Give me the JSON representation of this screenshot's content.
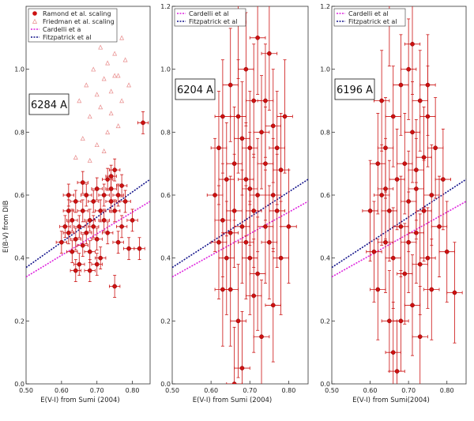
{
  "chart_data": [
    {
      "type": "scatter",
      "panel_label": "6284 A",
      "xlabel": "E(V-I) from Sumi (2004)",
      "ylabel": "E(B-V) from DIB",
      "xlim": [
        0.5,
        0.85
      ],
      "ylim": [
        0.0,
        1.2
      ],
      "x_ticks": [
        "0.50",
        "0.60",
        "0.70",
        "0.80"
      ],
      "y_ticks": [
        "0.0",
        "0.2",
        "0.4",
        "0.6",
        "0.8",
        "1.0"
      ],
      "legend_position": "top-left",
      "legend": [
        {
          "label": "Ramond et al. scaling",
          "kind": "marker-filled",
          "color": "#cc1111"
        },
        {
          "label": "Friedman et al. scaling",
          "kind": "marker-open",
          "color": "#e88a8a"
        },
        {
          "label": "Cardelli et a",
          "kind": "line",
          "color": "#dd22dd"
        },
        {
          "label": "Fitzpatrick et al",
          "kind": "line",
          "color": "#11118a"
        }
      ],
      "series": [
        {
          "name": "Ramond et al. scaling",
          "marker": "filled-circle",
          "color": "#cc1111",
          "error_x": 0.015,
          "error_y": 0.035,
          "points": [
            [
              0.6,
              0.45
            ],
            [
              0.61,
              0.5
            ],
            [
              0.62,
              0.55
            ],
            [
              0.62,
              0.48
            ],
            [
              0.63,
              0.42
            ],
            [
              0.63,
              0.52
            ],
            [
              0.64,
              0.58
            ],
            [
              0.64,
              0.46
            ],
            [
              0.65,
              0.5
            ],
            [
              0.65,
              0.38
            ],
            [
              0.66,
              0.55
            ],
            [
              0.66,
              0.44
            ],
            [
              0.67,
              0.6
            ],
            [
              0.67,
              0.48
            ],
            [
              0.68,
              0.52
            ],
            [
              0.68,
              0.42
            ],
            [
              0.69,
              0.58
            ],
            [
              0.69,
              0.5
            ],
            [
              0.7,
              0.62
            ],
            [
              0.7,
              0.46
            ],
            [
              0.71,
              0.55
            ],
            [
              0.71,
              0.4
            ],
            [
              0.72,
              0.6
            ],
            [
              0.72,
              0.52
            ],
            [
              0.73,
              0.65
            ],
            [
              0.73,
              0.48
            ],
            [
              0.74,
              0.58
            ],
            [
              0.74,
              0.62
            ],
            [
              0.75,
              0.68
            ],
            [
              0.75,
              0.55
            ],
            [
              0.76,
              0.6
            ],
            [
              0.76,
              0.45
            ],
            [
              0.77,
              0.63
            ],
            [
              0.77,
              0.5
            ],
            [
              0.78,
              0.58
            ],
            [
              0.79,
              0.43
            ],
            [
              0.8,
              0.52
            ],
            [
              0.82,
              0.43
            ],
            [
              0.75,
              0.31
            ],
            [
              0.83,
              0.83
            ],
            [
              0.7,
              0.38
            ],
            [
              0.68,
              0.36
            ],
            [
              0.64,
              0.36
            ],
            [
              0.66,
              0.64
            ],
            [
              0.74,
              0.66
            ],
            [
              0.62,
              0.6
            ]
          ]
        },
        {
          "name": "Friedman et al. scaling",
          "marker": "open-triangle",
          "color": "#e88a8a",
          "points": [
            [
              0.65,
              0.9
            ],
            [
              0.67,
              0.95
            ],
            [
              0.68,
              0.85
            ],
            [
              0.69,
              1.0
            ],
            [
              0.7,
              0.92
            ],
            [
              0.71,
              0.88
            ],
            [
              0.72,
              0.97
            ],
            [
              0.73,
              1.02
            ],
            [
              0.74,
              0.93
            ],
            [
              0.75,
              1.05
            ],
            [
              0.76,
              0.98
            ],
            [
              0.77,
              1.1
            ],
            [
              0.78,
              1.03
            ],
            [
              0.73,
              0.8
            ],
            [
              0.7,
              0.76
            ],
            [
              0.66,
              0.78
            ],
            [
              0.74,
              0.86
            ],
            [
              0.71,
              1.07
            ],
            [
              0.68,
              0.71
            ],
            [
              0.79,
              0.95
            ],
            [
              0.76,
              0.82
            ],
            [
              0.72,
              0.74
            ],
            [
              0.64,
              0.72
            ],
            [
              0.77,
              0.9
            ],
            [
              0.75,
              0.98
            ]
          ]
        }
      ],
      "lines": [
        {
          "name": "Cardelli et a",
          "color": "#dd22dd",
          "x": [
            0.5,
            0.85
          ],
          "y": [
            0.34,
            0.58
          ]
        },
        {
          "name": "Fitzpatrick et al",
          "color": "#11118a",
          "x": [
            0.5,
            0.85
          ],
          "y": [
            0.37,
            0.65
          ]
        }
      ]
    },
    {
      "type": "scatter",
      "panel_label": "6204 A",
      "xlabel": "E(V-I) from Sumi (2004)",
      "ylabel": "",
      "xlim": [
        0.5,
        0.85
      ],
      "ylim": [
        0.0,
        1.2
      ],
      "x_ticks": [
        "0.50",
        "0.60",
        "0.70",
        "0.80"
      ],
      "y_ticks": [
        "0.0",
        "0.2",
        "0.4",
        "0.6",
        "0.8",
        "1.0",
        "1.2"
      ],
      "legend_position": "top-left",
      "legend": [
        {
          "label": "Cardelli et al",
          "kind": "line",
          "color": "#dd22dd"
        },
        {
          "label": "Fitzpatrick et al",
          "kind": "line",
          "color": "#11118a"
        }
      ],
      "series": [
        {
          "name": "",
          "marker": "filled-circle",
          "color": "#cc1111",
          "error_x": 0.02,
          "error_y": 0.18,
          "points": [
            [
              0.61,
              0.6
            ],
            [
              0.62,
              0.45
            ],
            [
              0.62,
              0.75
            ],
            [
              0.63,
              0.52
            ],
            [
              0.63,
              0.85
            ],
            [
              0.64,
              0.4
            ],
            [
              0.64,
              0.65
            ],
            [
              0.65,
              0.3
            ],
            [
              0.65,
              0.95
            ],
            [
              0.66,
              0.55
            ],
            [
              0.66,
              0.7
            ],
            [
              0.67,
              0.2
            ],
            [
              0.67,
              0.85
            ],
            [
              0.68,
              0.5
            ],
            [
              0.68,
              0.05
            ],
            [
              0.69,
              0.65
            ],
            [
              0.69,
              1.0
            ],
            [
              0.7,
              0.4
            ],
            [
              0.7,
              0.75
            ],
            [
              0.71,
              0.55
            ],
            [
              0.71,
              0.9
            ],
            [
              0.72,
              0.35
            ],
            [
              0.72,
              0.6
            ],
            [
              0.73,
              0.8
            ],
            [
              0.73,
              0.15
            ],
            [
              0.74,
              0.5
            ],
            [
              0.74,
              0.7
            ],
            [
              0.75,
              0.45
            ],
            [
              0.75,
              1.05
            ],
            [
              0.76,
              0.6
            ],
            [
              0.76,
              0.25
            ],
            [
              0.77,
              0.75
            ],
            [
              0.77,
              0.55
            ],
            [
              0.78,
              0.4
            ],
            [
              0.78,
              0.68
            ],
            [
              0.79,
              0.85
            ],
            [
              0.8,
              0.5
            ],
            [
              0.67,
              1.15
            ],
            [
              0.66,
              0.0
            ],
            [
              0.72,
              1.1
            ],
            [
              0.63,
              0.3
            ],
            [
              0.7,
              0.62
            ],
            [
              0.68,
              0.78
            ],
            [
              0.74,
              0.9
            ],
            [
              0.65,
              0.48
            ],
            [
              0.71,
              0.28
            ],
            [
              0.76,
              0.82
            ],
            [
              0.69,
              0.45
            ]
          ]
        }
      ],
      "lines": [
        {
          "name": "Cardelli et al",
          "color": "#dd22dd",
          "x": [
            0.5,
            0.85
          ],
          "y": [
            0.34,
            0.58
          ]
        },
        {
          "name": "Fitzpatrick et al",
          "color": "#11118a",
          "x": [
            0.5,
            0.85
          ],
          "y": [
            0.37,
            0.65
          ]
        }
      ]
    },
    {
      "type": "scatter",
      "panel_label": "6196 A",
      "xlabel": "E(V-I) from Sumi(2004)",
      "ylabel": "",
      "xlim": [
        0.5,
        0.85
      ],
      "ylim": [
        0.0,
        1.2
      ],
      "x_ticks": [
        "0.50",
        "0.60",
        "0.70",
        "0.80"
      ],
      "y_ticks": [
        "0.0",
        "0.2",
        "0.4",
        "0.6",
        "0.8",
        "1.0",
        "1.2"
      ],
      "legend_position": "top-left",
      "legend": [
        {
          "label": "Cardelli et al",
          "kind": "line",
          "color": "#dd22dd"
        },
        {
          "label": "Fitzpatrick et al",
          "kind": "line",
          "color": "#11118a"
        }
      ],
      "series": [
        {
          "name": "",
          "marker": "filled-circle",
          "color": "#cc1111",
          "error_x": 0.02,
          "error_y": 0.16,
          "points": [
            [
              0.6,
              0.55
            ],
            [
              0.61,
              0.42
            ],
            [
              0.62,
              0.7
            ],
            [
              0.62,
              0.3
            ],
            [
              0.63,
              0.6
            ],
            [
              0.63,
              0.9
            ],
            [
              0.64,
              0.45
            ],
            [
              0.64,
              0.75
            ],
            [
              0.65,
              0.2
            ],
            [
              0.65,
              0.55
            ],
            [
              0.66,
              0.85
            ],
            [
              0.66,
              0.4
            ],
            [
              0.67,
              0.65
            ],
            [
              0.67,
              0.04
            ],
            [
              0.68,
              0.5
            ],
            [
              0.68,
              0.95
            ],
            [
              0.69,
              0.35
            ],
            [
              0.69,
              0.7
            ],
            [
              0.7,
              0.58
            ],
            [
              0.7,
              1.0
            ],
            [
              0.71,
              0.25
            ],
            [
              0.71,
              0.8
            ],
            [
              0.72,
              0.48
            ],
            [
              0.72,
              0.62
            ],
            [
              0.73,
              0.9
            ],
            [
              0.73,
              0.15
            ],
            [
              0.74,
              0.55
            ],
            [
              0.74,
              0.72
            ],
            [
              0.75,
              0.4
            ],
            [
              0.75,
              0.85
            ],
            [
              0.76,
              0.6
            ],
            [
              0.76,
              0.3
            ],
            [
              0.77,
              0.75
            ],
            [
              0.78,
              0.5
            ],
            [
              0.79,
              0.65
            ],
            [
              0.8,
              0.42
            ],
            [
              0.82,
              0.29
            ],
            [
              0.65,
              1.17
            ],
            [
              0.71,
              1.08
            ],
            [
              0.68,
              0.2
            ],
            [
              0.64,
              0.62
            ],
            [
              0.7,
              0.45
            ],
            [
              0.73,
              0.38
            ],
            [
              0.66,
              0.1
            ],
            [
              0.75,
              0.95
            ],
            [
              0.72,
              0.68
            ]
          ]
        }
      ],
      "lines": [
        {
          "name": "Cardelli et al",
          "color": "#dd22dd",
          "x": [
            0.5,
            0.85
          ],
          "y": [
            0.34,
            0.58
          ]
        },
        {
          "name": "Fitzpatrick et al",
          "color": "#11118a",
          "x": [
            0.5,
            0.85
          ],
          "y": [
            0.37,
            0.65
          ]
        }
      ]
    }
  ]
}
